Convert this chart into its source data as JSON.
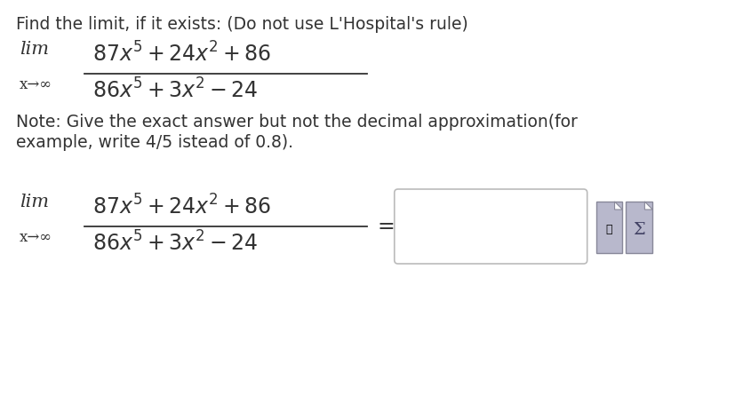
{
  "bg_color": "#ffffff",
  "text_color": "#333333",
  "title_text": "Find the limit, if it exists: (Do not use L'Hospital's rule)",
  "note_line1": "Note: Give the exact answer but not the decimal approximation(for",
  "note_line2": "example, write 4/5 istead of 0.8).",
  "lim_label": "lim",
  "arrow_label": "x→∞",
  "numerator": "$87x^5 + 24x^2 + 86$",
  "denominator": "$86x^5 + 3x^2 - 24$",
  "equals": "=",
  "font_size_title": 13.5,
  "font_size_math": 17,
  "font_size_note": 13.5,
  "font_size_lim": 15,
  "font_size_sub": 12,
  "box_color": "#ffffff",
  "box_edge_color": "#bbbbbb",
  "icon_bg": "#b8b8cc",
  "icon_border": "#888899"
}
